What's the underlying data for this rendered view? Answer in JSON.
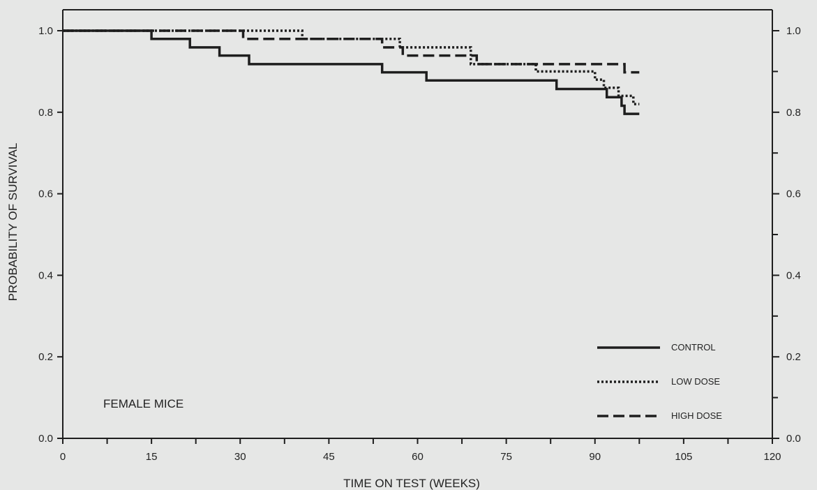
{
  "chart_data": {
    "type": "line",
    "step": true,
    "annotation": "FEMALE MICE",
    "xlabel": "TIME ON TEST (WEEKS)",
    "ylabel": "PROBABILITY OF SURVIVAL",
    "xlim": [
      0,
      120
    ],
    "ylim": [
      0.0,
      1.0
    ],
    "x_ticks": [
      0,
      15,
      30,
      45,
      60,
      75,
      90,
      105,
      120
    ],
    "x_tick_labels": [
      "0",
      "15",
      "30",
      "45",
      "60",
      "75",
      "90",
      "105",
      "120"
    ],
    "y_ticks": [
      0.0,
      0.2,
      0.4,
      0.6,
      0.8,
      1.0
    ],
    "y_tick_labels": [
      "0.0",
      "0.2",
      "0.4",
      "0.6",
      "0.8",
      "1.0"
    ],
    "right_y_ticks": [
      0.0,
      0.2,
      0.4,
      0.6,
      0.8,
      1.0
    ],
    "right_y_tick_labels": [
      "0.0",
      "0.2",
      "0.4",
      "0.6",
      "0.8",
      "1.0"
    ],
    "legend_position": "bottom-right",
    "series": [
      {
        "name": "CONTROL",
        "style": "solid",
        "color": "#1e1e1e",
        "points": [
          [
            0,
            1.0
          ],
          [
            15,
            0.98
          ],
          [
            21.5,
            0.959
          ],
          [
            26.5,
            0.939
          ],
          [
            31.5,
            0.918
          ],
          [
            54,
            0.898
          ],
          [
            61.5,
            0.878
          ],
          [
            83.5,
            0.857
          ],
          [
            91,
            0.857
          ],
          [
            92,
            0.837
          ],
          [
            94.5,
            0.816
          ],
          [
            95,
            0.796
          ],
          [
            97.5,
            0.796
          ]
        ]
      },
      {
        "name": "LOW DOSE",
        "style": "dotted",
        "color": "#1e1e1e",
        "points": [
          [
            0,
            1.0
          ],
          [
            40.5,
            0.98
          ],
          [
            57,
            0.959
          ],
          [
            69,
            0.918
          ],
          [
            80,
            0.9
          ],
          [
            89,
            0.9
          ],
          [
            90,
            0.88
          ],
          [
            91.5,
            0.86
          ],
          [
            94,
            0.84
          ],
          [
            96.5,
            0.82
          ],
          [
            97.5,
            0.82
          ]
        ]
      },
      {
        "name": "HIGH DOSE",
        "style": "dashed",
        "color": "#1e1e1e",
        "points": [
          [
            0,
            1.0
          ],
          [
            30.5,
            0.98
          ],
          [
            54,
            0.959
          ],
          [
            57.5,
            0.939
          ],
          [
            69.5,
            0.939
          ],
          [
            70,
            0.918
          ],
          [
            95,
            0.898
          ],
          [
            97.5,
            0.898
          ]
        ]
      }
    ]
  }
}
